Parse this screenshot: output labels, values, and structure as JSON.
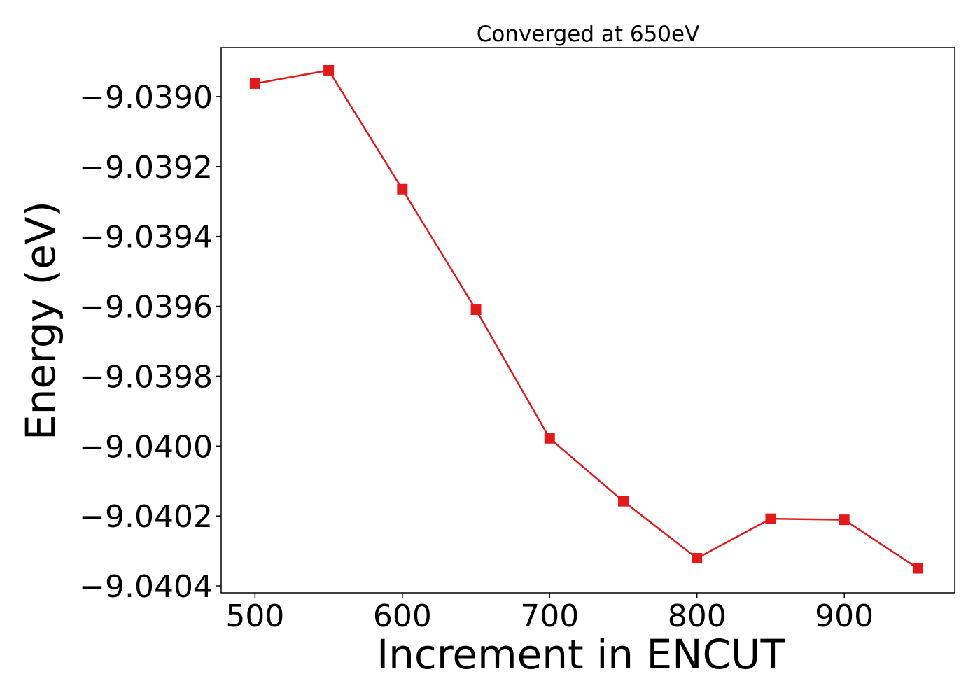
{
  "chart_data": {
    "type": "line",
    "title": "Converged at 650eV",
    "xlabel": "Increment in ENCUT",
    "ylabel": "Energy (eV)",
    "xlim": [
      477,
      975
    ],
    "ylim": [
      -9.04042,
      -9.03886
    ],
    "x_ticks": [
      500,
      600,
      700,
      800,
      900
    ],
    "y_ticks": [
      -9.039,
      -9.0392,
      -9.0394,
      -9.0396,
      -9.0398,
      -9.04,
      -9.0402,
      -9.0404
    ],
    "x_tick_labels": [
      "500",
      "600",
      "700",
      "800",
      "900"
    ],
    "y_tick_labels": [
      "−9.0390",
      "−9.0392",
      "−9.0394",
      "−9.0396",
      "−9.0398",
      "−9.0400",
      "−9.0402",
      "−9.0404"
    ],
    "grid": false,
    "series": [
      {
        "color": "#e31a1c",
        "marker": "square",
        "x": [
          500,
          550,
          600,
          650,
          700,
          750,
          800,
          850,
          900,
          950
        ],
        "values": [
          -9.038963,
          -9.038925,
          -9.039265,
          -9.03961,
          -9.039978,
          -9.040158,
          -9.040321,
          -9.040208,
          -9.040211,
          -9.04035
        ]
      }
    ]
  }
}
